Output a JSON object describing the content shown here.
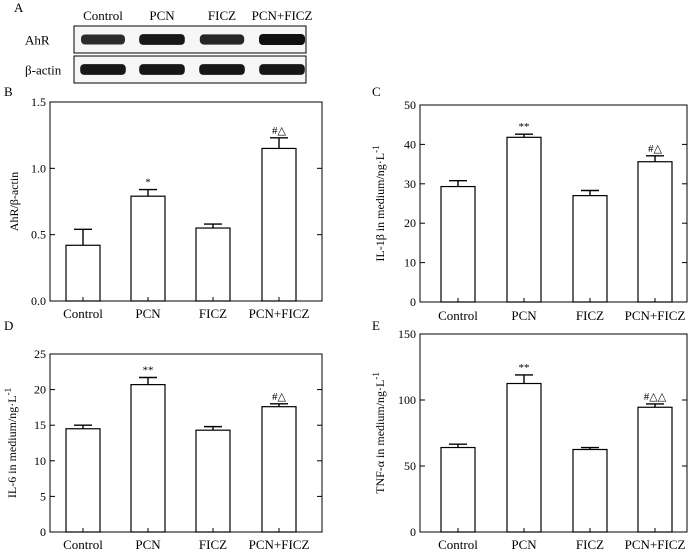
{
  "colors": {
    "ink": "#000000",
    "bar_fill": "#ffffff",
    "band": "#111111",
    "blot_bg": "#f6f6f6"
  },
  "blot": {
    "panel_label": "A",
    "lanes": [
      "Control",
      "PCN",
      "FICZ",
      "PCN+FICZ"
    ],
    "rows": [
      {
        "label": "AhR",
        "band_intensity": [
          0.75,
          0.95,
          0.8,
          1.0
        ]
      },
      {
        "label": "β-actin",
        "band_intensity": [
          0.95,
          0.95,
          0.95,
          0.95
        ]
      }
    ]
  },
  "chart_data": [
    {
      "panel_label": "B",
      "type": "bar",
      "categories": [
        "Control",
        "PCN",
        "FICZ",
        "PCN+FICZ"
      ],
      "values": [
        0.42,
        0.79,
        0.55,
        1.15
      ],
      "errors": [
        0.12,
        0.05,
        0.03,
        0.08
      ],
      "annotations": [
        "",
        "*",
        "",
        "#△"
      ],
      "ylabel": "AhR/β-actin",
      "ylim": [
        0,
        1.5
      ],
      "yticks": [
        0.0,
        0.5,
        1.0,
        1.5
      ],
      "ytick_labels": [
        "0.0",
        "0.5",
        "1.0",
        "1.5"
      ]
    },
    {
      "panel_label": "C",
      "type": "bar",
      "categories": [
        "Control",
        "PCN",
        "FICZ",
        "PCN+FICZ"
      ],
      "values": [
        29.3,
        41.8,
        27.0,
        35.6
      ],
      "errors": [
        1.5,
        0.8,
        1.3,
        1.5
      ],
      "annotations": [
        "",
        "**",
        "",
        "#△"
      ],
      "ylabel": "IL-1β in medium/ng·L",
      "ylabel_sup": "-1",
      "ylim": [
        0,
        50
      ],
      "yticks": [
        0,
        10,
        20,
        30,
        40,
        50
      ],
      "ytick_labels": [
        "0",
        "10",
        "20",
        "30",
        "40",
        "50"
      ]
    },
    {
      "panel_label": "D",
      "type": "bar",
      "categories": [
        "Control",
        "PCN",
        "FICZ",
        "PCN+FICZ"
      ],
      "values": [
        14.5,
        20.7,
        14.3,
        17.6
      ],
      "errors": [
        0.5,
        1.0,
        0.5,
        0.4
      ],
      "annotations": [
        "",
        "**",
        "",
        "#△"
      ],
      "ylabel": "IL-6 in medium/ng·L",
      "ylabel_sup": "-1",
      "ylim": [
        0,
        25
      ],
      "yticks": [
        0,
        5,
        10,
        15,
        20,
        25
      ],
      "ytick_labels": [
        "0",
        "5",
        "10",
        "15",
        "20",
        "25"
      ]
    },
    {
      "panel_label": "E",
      "type": "bar",
      "categories": [
        "Control",
        "PCN",
        "FICZ",
        "PCN+FICZ"
      ],
      "values": [
        64,
        112.5,
        62.5,
        94.5
      ],
      "errors": [
        2.5,
        6.5,
        1.5,
        2.5
      ],
      "annotations": [
        "",
        "**",
        "",
        "#△△"
      ],
      "ylabel": "TNF-α in medium/ng·L",
      "ylabel_sup": "-1",
      "ylim": [
        0,
        150
      ],
      "yticks": [
        0,
        50,
        100,
        150
      ],
      "ytick_labels": [
        "0",
        "50",
        "100",
        "150"
      ]
    }
  ]
}
